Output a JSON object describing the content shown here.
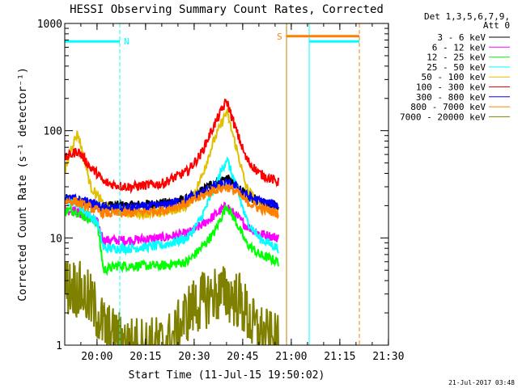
{
  "chart_data": {
    "type": "line",
    "title": "HESSI Observing Summary Count Rates, Corrected",
    "xlabel": "Start Time (11-Jul-15 19:50:02)",
    "ylabel": "Corrected Count Rate (s⁻¹ detector⁻¹)",
    "x_range_minutes_after_start": [
      0,
      100
    ],
    "ylim": [
      1,
      1000
    ],
    "y_scale": "log",
    "x_tick_labels": [
      "20:00",
      "20:15",
      "20:30",
      "20:45",
      "21:00",
      "21:15",
      "21:30"
    ],
    "x_tick_minutes": [
      9.97,
      24.97,
      39.97,
      54.97,
      69.97,
      84.97,
      99.97
    ],
    "y_tick_labels": [
      "1",
      "10",
      "100",
      "1000"
    ],
    "y_tick_values": [
      1,
      10,
      100,
      1000
    ],
    "legend_header": [
      "Det 1,3,5,6,7,9,",
      "Att 0"
    ],
    "legend_placement": "right, outside plot",
    "flag_bars": [
      {
        "label": "N",
        "color": "#00ffff",
        "x_start": 0,
        "x_end": 17,
        "y": 680
      },
      {
        "label": "S",
        "color": "#ff8000",
        "x_start": 68.5,
        "x_end": 91,
        "y": 760
      },
      {
        "label": "",
        "color": "#00ffff",
        "x_start": 75.5,
        "x_end": 91,
        "y": 680
      }
    ],
    "vertical_markers": [
      {
        "color": "#00ffff",
        "style": "dashed",
        "x": 17
      },
      {
        "color": "#c08000",
        "style": "solid",
        "x": 68.5
      },
      {
        "color": "#00ffff",
        "style": "solid",
        "x": 75.5
      },
      {
        "color": "#ff8000",
        "style": "dashed",
        "x": 91
      }
    ],
    "data_end_minutes": 66,
    "series": [
      {
        "name": "3 - 6 keV",
        "color": "#000000",
        "x": [
          0,
          3,
          6,
          8,
          12,
          16,
          20,
          30,
          38,
          42,
          46,
          50,
          53,
          56,
          60,
          66
        ],
        "y": [
          23,
          23,
          21,
          20,
          20,
          20,
          20,
          21,
          23,
          27,
          33,
          36,
          31,
          25,
          22,
          20
        ]
      },
      {
        "name": "6 - 12 keV",
        "color": "#ff00ff",
        "x": [
          0,
          3,
          6,
          10,
          12,
          16,
          20,
          30,
          38,
          42,
          46,
          50,
          53,
          56,
          60,
          66
        ],
        "y": [
          18,
          18,
          16,
          14,
          9.5,
          9.5,
          9.5,
          10,
          11,
          13,
          16,
          20,
          16,
          13,
          11,
          10
        ]
      },
      {
        "name": "12 - 25 keV",
        "color": "#00ff00",
        "x": [
          0,
          3,
          6,
          10,
          12,
          16,
          20,
          30,
          38,
          42,
          46,
          50,
          53,
          56,
          60,
          66
        ],
        "y": [
          18,
          18,
          16,
          14,
          5,
          5.5,
          5.5,
          5.5,
          6,
          8,
          11,
          20,
          14,
          9,
          7,
          6
        ]
      },
      {
        "name": "25 - 50 keV",
        "color": "#00ffff",
        "x": [
          0,
          3,
          6,
          10,
          12,
          16,
          20,
          30,
          38,
          42,
          46,
          50,
          53,
          56,
          60,
          66
        ],
        "y": [
          22,
          22,
          18,
          14,
          8,
          8,
          8,
          8.5,
          10,
          15,
          28,
          55,
          30,
          15,
          10,
          8
        ]
      },
      {
        "name": "50 - 100 keV",
        "color": "#e0c000",
        "x": [
          0,
          2,
          4,
          6,
          8,
          10,
          12,
          16,
          20,
          30,
          38,
          42,
          46,
          50,
          53,
          56,
          60,
          66
        ],
        "y": [
          40,
          70,
          95,
          55,
          30,
          25,
          20,
          18,
          17,
          17,
          20,
          35,
          80,
          150,
          70,
          30,
          20,
          17
        ]
      },
      {
        "name": "100 - 300 keV",
        "color": "#ff0000",
        "x": [
          0,
          2,
          4,
          6,
          8,
          10,
          12,
          16,
          20,
          30,
          38,
          42,
          46,
          50,
          53,
          56,
          60,
          66
        ],
        "y": [
          55,
          60,
          65,
          55,
          45,
          40,
          33,
          31,
          30,
          32,
          42,
          60,
          110,
          190,
          100,
          55,
          40,
          33
        ]
      },
      {
        "name": "300 - 800 keV",
        "color": "#0000ff",
        "x": [
          0,
          3,
          6,
          10,
          12,
          16,
          20,
          30,
          38,
          42,
          46,
          50,
          53,
          56,
          60,
          66
        ],
        "y": [
          23,
          23,
          22,
          20,
          19,
          19,
          19,
          20,
          23,
          26,
          30,
          32,
          30,
          25,
          22,
          20
        ]
      },
      {
        "name": "800 - 7000 keV",
        "color": "#ff8000",
        "x": [
          0,
          3,
          6,
          10,
          12,
          16,
          20,
          30,
          38,
          42,
          46,
          50,
          53,
          56,
          60,
          66
        ],
        "y": [
          22,
          22,
          20,
          18,
          17,
          17,
          17,
          18,
          21,
          24,
          28,
          30,
          27,
          22,
          19,
          17
        ]
      },
      {
        "name": "7000 - 20000 keV",
        "color": "#808000",
        "x": [
          0,
          3,
          6,
          8,
          10,
          12,
          15,
          20,
          25,
          30,
          34,
          36,
          38,
          40,
          43,
          46,
          50,
          54,
          56,
          58,
          62,
          66
        ],
        "y": [
          3.5,
          3.5,
          3,
          2.5,
          2,
          1.5,
          1.2,
          1,
          1,
          1,
          1.2,
          1.6,
          2,
          2.3,
          2.6,
          3,
          3,
          2.6,
          2,
          1.5,
          1.2,
          1
        ]
      }
    ]
  },
  "footer": {
    "timestamp": "21-Jul-2017 03:48"
  }
}
